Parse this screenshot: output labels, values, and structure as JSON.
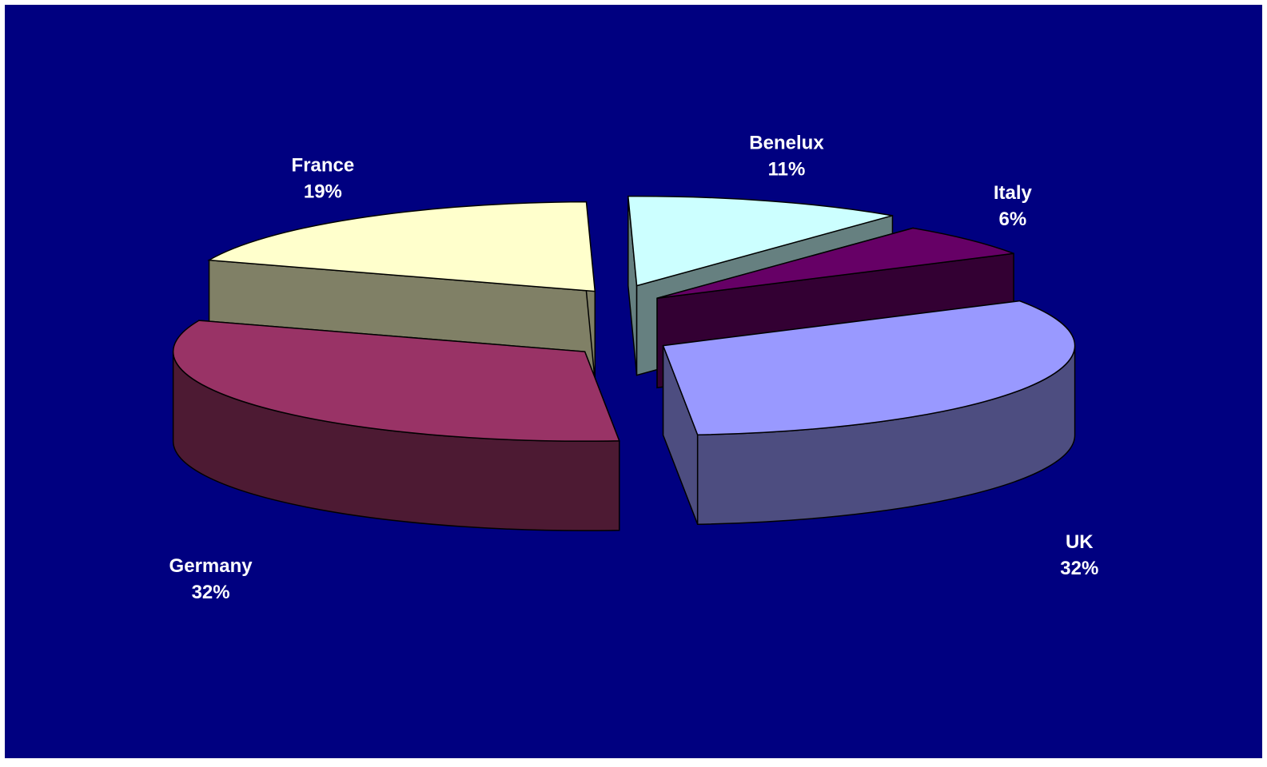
{
  "chart_data": {
    "type": "pie",
    "style": "3d-exploded",
    "title": "",
    "background_color": "#000080",
    "slices": [
      {
        "label": "UK",
        "percent_label": "32%",
        "value": 32,
        "top_color": "#9999ff",
        "side_color": "#4d4d80"
      },
      {
        "label": "Germany",
        "percent_label": "32%",
        "value": 32,
        "top_color": "#993366",
        "side_color": "#4d1a33"
      },
      {
        "label": "France",
        "percent_label": "19%",
        "value": 19,
        "top_color": "#ffffcc",
        "side_color": "#808066"
      },
      {
        "label": "Benelux",
        "percent_label": "11%",
        "value": 11,
        "top_color": "#ccffff",
        "side_color": "#668080"
      },
      {
        "label": "Italy",
        "percent_label": "6%",
        "value": 6,
        "top_color": "#660066",
        "side_color": "#330033"
      }
    ]
  }
}
